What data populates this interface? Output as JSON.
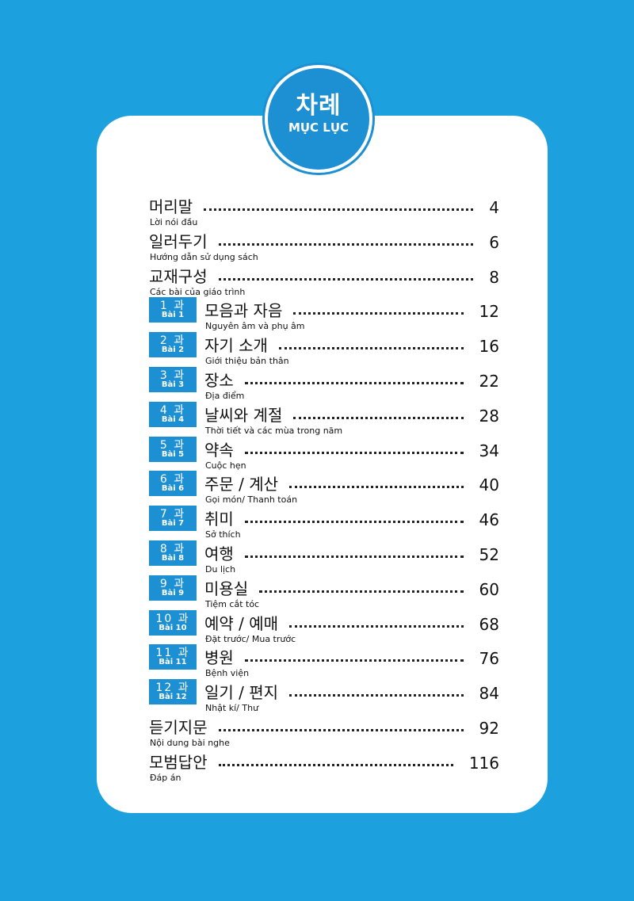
{
  "header": {
    "title_ko": "차례",
    "title_vi": "MỤC LỤC"
  },
  "toc": [
    {
      "ko": "머리말",
      "vi": "Lời nói đầu",
      "page": "4"
    },
    {
      "ko": "일러두기",
      "vi": "Hướng dẫn sử dụng sách",
      "page": "6"
    },
    {
      "ko": "교재구성",
      "vi": "Các bài của giáo trình",
      "page": "8"
    },
    {
      "lesson": "1 과",
      "lesson_vi": "Bài 1",
      "ko": "모음과 자음",
      "vi": "Nguyên âm và phụ âm",
      "page": "12"
    },
    {
      "lesson": "2 과",
      "lesson_vi": "Bài 2",
      "ko": "자기 소개",
      "vi": "Giới thiệu bản thân",
      "page": "16"
    },
    {
      "lesson": "3 과",
      "lesson_vi": "Bài 3",
      "ko": "장소",
      "vi": "Địa điểm",
      "page": "22"
    },
    {
      "lesson": "4 과",
      "lesson_vi": "Bài 4",
      "ko": "날씨와 계절",
      "vi": "Thời tiết và các mùa trong năm",
      "page": "28"
    },
    {
      "lesson": "5 과",
      "lesson_vi": "Bài 5",
      "ko": "약속",
      "vi": "Cuộc hẹn",
      "page": "34"
    },
    {
      "lesson": "6 과",
      "lesson_vi": "Bài 6",
      "ko": "주문 / 계산",
      "vi": "Gọi món/ Thanh toán",
      "page": "40"
    },
    {
      "lesson": "7 과",
      "lesson_vi": "Bài 7",
      "ko": "취미",
      "vi": "Sở thích",
      "page": "46"
    },
    {
      "lesson": "8 과",
      "lesson_vi": "Bài 8",
      "ko": "여행",
      "vi": "Du lịch",
      "page": "52"
    },
    {
      "lesson": "9 과",
      "lesson_vi": "Bài 9",
      "ko": "미용실",
      "vi": "Tiệm cắt tóc",
      "page": "60"
    },
    {
      "lesson": "10 과",
      "lesson_vi": "Bài 10",
      "ko": "예약 / 예매",
      "vi": "Đặt trước/ Mua trước",
      "page": "68"
    },
    {
      "lesson": "11 과",
      "lesson_vi": "Bài 11",
      "ko": "병원",
      "vi": "Bệnh viện",
      "page": "76"
    },
    {
      "lesson": "12 과",
      "lesson_vi": "Bài 12",
      "ko": "일기 / 편지",
      "vi": "Nhật kí/ Thư",
      "page": "84"
    },
    {
      "ko": "듣기지문",
      "vi": "Nội dung bài nghe",
      "page": "92"
    },
    {
      "ko": "모범답안",
      "vi": "Đáp án",
      "page": "116"
    }
  ]
}
